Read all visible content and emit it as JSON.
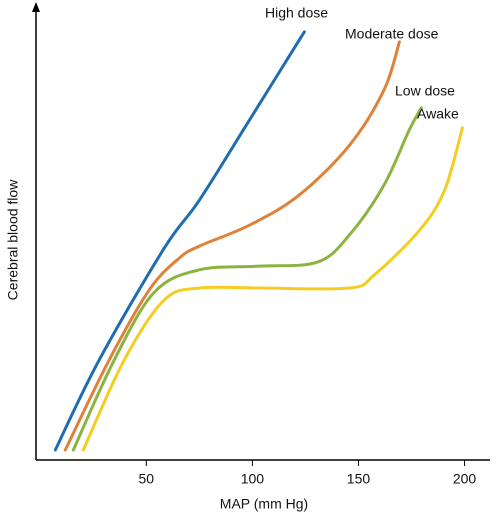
{
  "chart_data": {
    "type": "line",
    "xlabel": "MAP (mm Hg)",
    "ylabel": "Cerebral blood flow",
    "xlim": [
      -2,
      212
    ],
    "ylim": [
      0,
      100
    ],
    "xticks": [
      50,
      100,
      150,
      200
    ],
    "series": [
      {
        "name": "High dose",
        "color": "#1f6db0",
        "x": [
          7.1,
          27.8,
          58.5,
          75,
          98.6,
          124.5
        ],
        "values": [
          2.2,
          22,
          46.6,
          57.1,
          74.7,
          94.1
        ]
      },
      {
        "name": "Moderate dose",
        "color": "#e0813a",
        "x": [
          11.8,
          32.5,
          51.4,
          65.6,
          75,
          98.6,
          122,
          145.8,
          162,
          169.3
        ],
        "values": [
          2.2,
          22,
          37.4,
          44.4,
          47,
          51.6,
          58.2,
          69.2,
          81.3,
          91.9
        ]
      },
      {
        "name": "Low dose",
        "color": "#8ab43f",
        "x": [
          15.6,
          34.9,
          53.8,
          75,
          103.3,
          130.7,
          145.8,
          162,
          173.9,
          179.7
        ],
        "values": [
          2.2,
          22,
          36.9,
          41.8,
          42.6,
          43.5,
          49.5,
          60.4,
          72.5,
          77.4
        ]
      },
      {
        "name": "Awake",
        "color": "#f5cd20",
        "x": [
          20.3,
          39.6,
          58.5,
          75,
          103.3,
          145.8,
          157.5,
          178.8,
          190.6,
          199
        ],
        "values": [
          2.2,
          22,
          35.2,
          37.8,
          37.8,
          37.8,
          40.7,
          50.5,
          59.3,
          73
        ]
      }
    ]
  }
}
